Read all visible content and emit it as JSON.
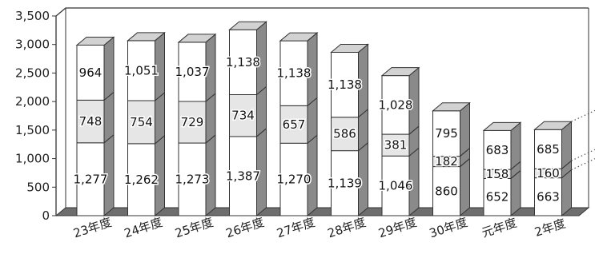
{
  "chart_data": {
    "type": "bar",
    "stacked": true,
    "three_d": true,
    "title": "",
    "xlabel": "",
    "ylabel": "",
    "ylim": [
      0,
      3500
    ],
    "yticks": [
      "0",
      "500",
      "1,000",
      "1,500",
      "2,000",
      "2,500",
      "3,000",
      "3,500"
    ],
    "categories": [
      "23年度",
      "24年度",
      "25年度",
      "26年度",
      "27年度",
      "28年度",
      "29年度",
      "30年度",
      "元年度",
      "2年度"
    ],
    "series": [
      {
        "values": [
          1277,
          1262,
          1273,
          1387,
          1270,
          1139,
          1046,
          860,
          652,
          663
        ],
        "labels": [
          "1,277",
          "1,262",
          "1,273",
          "1,387",
          "1,270",
          "1,139",
          "1,046",
          "860",
          "652",
          "663"
        ],
        "color": "#ffffff"
      },
      {
        "values": [
          748,
          754,
          729,
          734,
          657,
          586,
          381,
          182,
          158,
          160
        ],
        "labels": [
          "748",
          "754",
          "729",
          "734",
          "657",
          "586",
          "381",
          "182",
          "158",
          "160"
        ],
        "color": "#e6e6e6"
      },
      {
        "values": [
          964,
          1051,
          1037,
          1138,
          1138,
          1138,
          1028,
          795,
          683,
          685
        ],
        "labels": [
          "964",
          "1,051",
          "1,037",
          "1,138",
          "1,138",
          "1,138",
          "1,028",
          "795",
          "683",
          "685"
        ],
        "color": "#ffffff"
      }
    ],
    "grid": false,
    "legend": "none",
    "colors": {
      "face": "#ffffff",
      "side": "#8a8a8a",
      "top": "#d2d2d2",
      "middle": "#e6e6e6",
      "floor": "#6e6e6e",
      "outline": "#333333"
    }
  }
}
